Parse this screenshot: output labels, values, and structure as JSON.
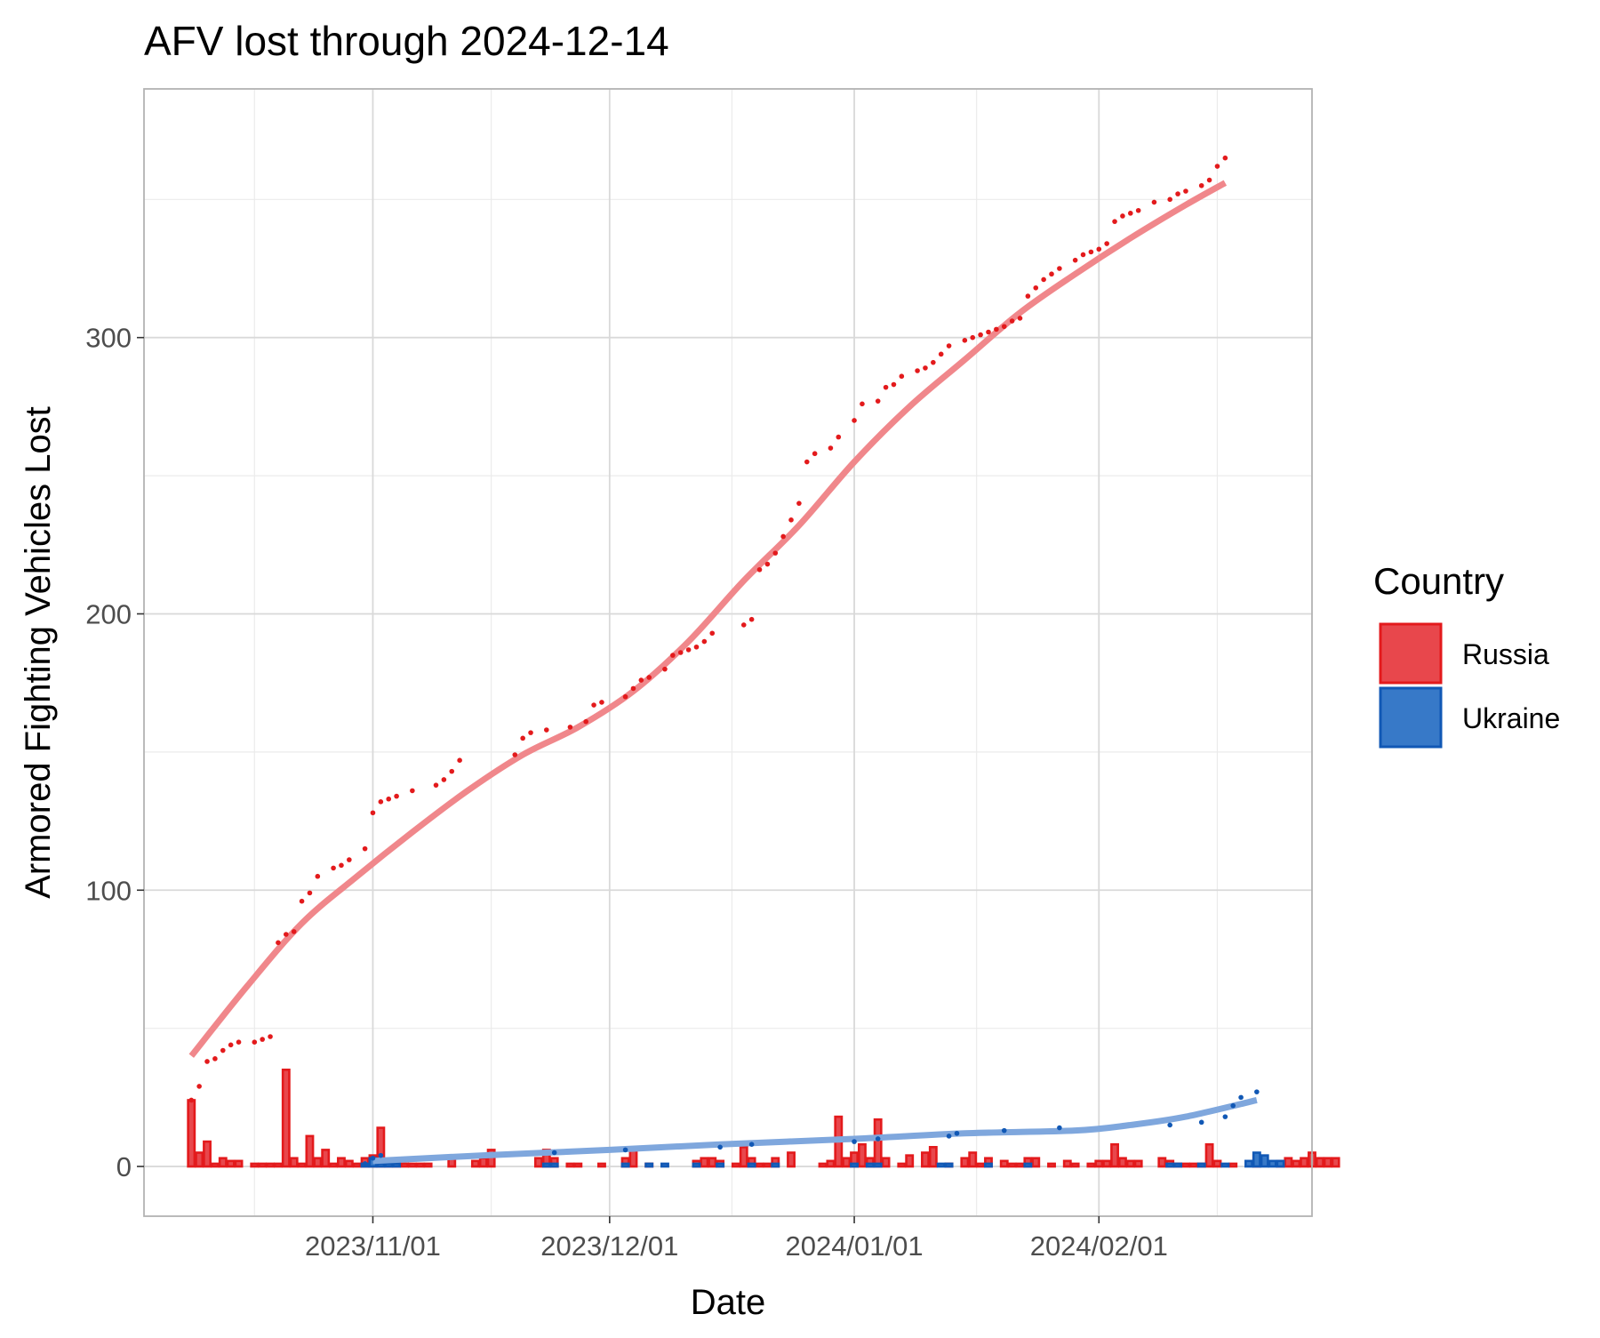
{
  "chart_data": {
    "type": "bar",
    "title": "AFV lost through 2024-12-14",
    "xlabel": "Date",
    "ylabel": "Armored Fighting Vehicles Lost",
    "x_tick_labels": [
      "2023/11/01",
      "2023/12/01",
      "2024/01/01",
      "2024/02/01"
    ],
    "x_tick_dates": [
      "2023-11-01",
      "2023-12-01",
      "2024-01-01",
      "2024-02-01"
    ],
    "y_ticks": [
      0,
      100,
      200,
      300
    ],
    "xlim": [
      "2023-10-03",
      "2024-02-28"
    ],
    "ylim": [
      -18,
      390
    ],
    "grid": true,
    "legend": {
      "title": "Country",
      "position": "right"
    },
    "colors": {
      "Russia": {
        "fill": "#e8474c",
        "stroke": "#e31a1c",
        "trend": "#f0878b"
      },
      "Ukraine": {
        "fill": "#3779c8",
        "stroke": "#1158b5",
        "trend": "#7fa7dd"
      }
    },
    "series": [
      {
        "name": "Russia",
        "daily": [
          [
            "2023-10-09",
            24
          ],
          [
            "2023-10-10",
            5
          ],
          [
            "2023-10-11",
            9
          ],
          [
            "2023-10-12",
            1
          ],
          [
            "2023-10-13",
            3
          ],
          [
            "2023-10-14",
            2
          ],
          [
            "2023-10-15",
            2
          ],
          [
            "2023-10-17",
            1
          ],
          [
            "2023-10-18",
            1
          ],
          [
            "2023-10-19",
            1
          ],
          [
            "2023-10-20",
            1
          ],
          [
            "2023-10-21",
            35
          ],
          [
            "2023-10-22",
            3
          ],
          [
            "2023-10-23",
            1
          ],
          [
            "2023-10-24",
            11
          ],
          [
            "2023-10-25",
            3
          ],
          [
            "2023-10-26",
            6
          ],
          [
            "2023-10-27",
            1
          ],
          [
            "2023-10-28",
            3
          ],
          [
            "2023-10-29",
            2
          ],
          [
            "2023-10-30",
            1
          ],
          [
            "2023-10-31",
            3
          ],
          [
            "2023-11-01",
            4
          ],
          [
            "2023-11-02",
            14
          ],
          [
            "2023-11-03",
            2
          ],
          [
            "2023-11-04",
            1
          ],
          [
            "2023-11-05",
            1
          ],
          [
            "2023-11-06",
            1
          ],
          [
            "2023-11-07",
            1
          ],
          [
            "2023-11-08",
            1
          ],
          [
            "2023-11-11",
            3
          ],
          [
            "2023-11-14",
            2
          ],
          [
            "2023-11-15",
            3
          ],
          [
            "2023-11-16",
            6
          ],
          [
            "2023-11-22",
            3
          ],
          [
            "2023-11-23",
            6
          ],
          [
            "2023-11-24",
            3
          ],
          [
            "2023-11-26",
            1
          ],
          [
            "2023-11-27",
            1
          ],
          [
            "2023-11-30",
            1
          ],
          [
            "2023-12-03",
            3
          ],
          [
            "2023-12-04",
            7
          ],
          [
            "2023-12-06",
            1
          ],
          [
            "2023-12-12",
            2
          ],
          [
            "2023-12-13",
            3
          ],
          [
            "2023-12-14",
            3
          ],
          [
            "2023-12-15",
            2
          ],
          [
            "2023-12-17",
            1
          ],
          [
            "2023-12-18",
            7
          ],
          [
            "2023-12-19",
            3
          ],
          [
            "2023-12-20",
            1
          ],
          [
            "2023-12-21",
            1
          ],
          [
            "2023-12-22",
            3
          ],
          [
            "2023-12-24",
            5
          ],
          [
            "2023-12-28",
            1
          ],
          [
            "2023-12-29",
            2
          ],
          [
            "2023-12-30",
            18
          ],
          [
            "2023-12-31",
            3
          ],
          [
            "2024-01-01",
            5
          ],
          [
            "2024-01-02",
            8
          ],
          [
            "2024-01-03",
            3
          ],
          [
            "2024-01-04",
            17
          ],
          [
            "2024-01-05",
            3
          ],
          [
            "2024-01-07",
            1
          ],
          [
            "2024-01-08",
            4
          ],
          [
            "2024-01-10",
            5
          ],
          [
            "2024-01-11",
            7
          ],
          [
            "2024-01-13",
            1
          ],
          [
            "2024-01-15",
            3
          ],
          [
            "2024-01-16",
            5
          ],
          [
            "2024-01-17",
            1
          ],
          [
            "2024-01-18",
            3
          ],
          [
            "2024-01-20",
            2
          ],
          [
            "2024-01-21",
            1
          ],
          [
            "2024-01-22",
            1
          ],
          [
            "2024-01-23",
            3
          ],
          [
            "2024-01-24",
            3
          ],
          [
            "2024-01-26",
            1
          ],
          [
            "2024-01-28",
            2
          ],
          [
            "2024-01-29",
            1
          ],
          [
            "2024-01-31",
            1
          ],
          [
            "2024-02-01",
            2
          ],
          [
            "2024-02-02",
            2
          ],
          [
            "2024-02-03",
            8
          ],
          [
            "2024-02-04",
            3
          ],
          [
            "2024-02-05",
            2
          ],
          [
            "2024-02-06",
            2
          ],
          [
            "2024-02-09",
            3
          ],
          [
            "2024-02-10",
            2
          ],
          [
            "2024-02-11",
            1
          ],
          [
            "2024-02-12",
            1
          ],
          [
            "2024-02-13",
            1
          ],
          [
            "2024-02-14",
            1
          ],
          [
            "2024-02-15",
            8
          ],
          [
            "2024-02-16",
            2
          ],
          [
            "2024-02-18",
            1
          ],
          [
            "2024-02-21",
            4
          ],
          [
            "2024-02-24",
            2
          ],
          [
            "2024-02-25",
            3
          ],
          [
            "2024-02-26",
            2
          ],
          [
            "2024-02-27",
            3
          ],
          [
            "2024-02-28",
            5
          ],
          [
            "2024-02-29",
            3
          ],
          [
            "2024-03-01",
            3
          ],
          [
            "2024-03-02",
            3
          ]
        ],
        "cumulative": [
          [
            "2023-10-09",
            24
          ],
          [
            "2023-10-10",
            29
          ],
          [
            "2023-10-11",
            38
          ],
          [
            "2023-10-12",
            39
          ],
          [
            "2023-10-13",
            42
          ],
          [
            "2023-10-14",
            44
          ],
          [
            "2023-10-15",
            45
          ],
          [
            "2023-10-17",
            45
          ],
          [
            "2023-10-18",
            46
          ],
          [
            "2023-10-19",
            47
          ],
          [
            "2023-10-20",
            81
          ],
          [
            "2023-10-21",
            84
          ],
          [
            "2023-10-22",
            85
          ],
          [
            "2023-10-23",
            96
          ],
          [
            "2023-10-24",
            99
          ],
          [
            "2023-10-25",
            105
          ],
          [
            "2023-10-27",
            108
          ],
          [
            "2023-10-28",
            109
          ],
          [
            "2023-10-29",
            111
          ],
          [
            "2023-10-31",
            115
          ],
          [
            "2023-11-01",
            128
          ],
          [
            "2023-11-02",
            132
          ],
          [
            "2023-11-03",
            133
          ],
          [
            "2023-11-04",
            134
          ],
          [
            "2023-11-06",
            136
          ],
          [
            "2023-11-09",
            138
          ],
          [
            "2023-11-10",
            140
          ],
          [
            "2023-11-11",
            143
          ],
          [
            "2023-11-12",
            147
          ],
          [
            "2023-11-19",
            149
          ],
          [
            "2023-11-20",
            155
          ],
          [
            "2023-11-21",
            157
          ],
          [
            "2023-11-23",
            158
          ],
          [
            "2023-11-26",
            159
          ],
          [
            "2023-11-28",
            161
          ],
          [
            "2023-11-29",
            167
          ],
          [
            "2023-11-30",
            168
          ],
          [
            "2023-12-03",
            170
          ],
          [
            "2023-12-04",
            173
          ],
          [
            "2023-12-05",
            176
          ],
          [
            "2023-12-06",
            177
          ],
          [
            "2023-12-08",
            180
          ],
          [
            "2023-12-09",
            185
          ],
          [
            "2023-12-10",
            186
          ],
          [
            "2023-12-11",
            187
          ],
          [
            "2023-12-12",
            188
          ],
          [
            "2023-12-13",
            190
          ],
          [
            "2023-12-14",
            193
          ],
          [
            "2023-12-18",
            196
          ],
          [
            "2023-12-19",
            198
          ],
          [
            "2023-12-20",
            216
          ],
          [
            "2023-12-21",
            218
          ],
          [
            "2023-12-22",
            222
          ],
          [
            "2023-12-23",
            228
          ],
          [
            "2023-12-24",
            234
          ],
          [
            "2023-12-25",
            240
          ],
          [
            "2023-12-26",
            255
          ],
          [
            "2023-12-27",
            258
          ],
          [
            "2023-12-29",
            260
          ],
          [
            "2023-12-30",
            264
          ],
          [
            "2024-01-01",
            270
          ],
          [
            "2024-01-02",
            276
          ],
          [
            "2024-01-04",
            277
          ],
          [
            "2024-01-05",
            282
          ],
          [
            "2024-01-06",
            283
          ],
          [
            "2024-01-07",
            286
          ],
          [
            "2024-01-09",
            288
          ],
          [
            "2024-01-10",
            289
          ],
          [
            "2024-01-11",
            291
          ],
          [
            "2024-01-12",
            294
          ],
          [
            "2024-01-13",
            297
          ],
          [
            "2024-01-15",
            299
          ],
          [
            "2024-01-16",
            300
          ],
          [
            "2024-01-17",
            301
          ],
          [
            "2024-01-18",
            302
          ],
          [
            "2024-01-19",
            303
          ],
          [
            "2024-01-20",
            304
          ],
          [
            "2024-01-21",
            306
          ],
          [
            "2024-01-22",
            307
          ],
          [
            "2024-01-23",
            315
          ],
          [
            "2024-01-24",
            318
          ],
          [
            "2024-01-25",
            321
          ],
          [
            "2024-01-26",
            323
          ],
          [
            "2024-01-27",
            325
          ],
          [
            "2024-01-29",
            328
          ],
          [
            "2024-01-30",
            330
          ],
          [
            "2024-01-31",
            331
          ],
          [
            "2024-02-01",
            332
          ],
          [
            "2024-02-02",
            334
          ],
          [
            "2024-02-03",
            342
          ],
          [
            "2024-02-04",
            344
          ],
          [
            "2024-02-05",
            345
          ],
          [
            "2024-02-06",
            346
          ],
          [
            "2024-02-08",
            349
          ],
          [
            "2024-02-10",
            350
          ],
          [
            "2024-02-11",
            352
          ],
          [
            "2024-02-12",
            353
          ],
          [
            "2024-02-14",
            355
          ],
          [
            "2024-02-15",
            357
          ],
          [
            "2024-02-16",
            362
          ],
          [
            "2024-02-17",
            365
          ]
        ],
        "trend": [
          [
            "2023-10-09",
            40
          ],
          [
            "2023-10-16",
            65
          ],
          [
            "2023-10-23",
            88
          ],
          [
            "2023-10-30",
            105
          ],
          [
            "2023-11-06",
            121
          ],
          [
            "2023-11-13",
            136
          ],
          [
            "2023-11-20",
            149
          ],
          [
            "2023-11-27",
            159
          ],
          [
            "2023-12-04",
            172
          ],
          [
            "2023-12-11",
            190
          ],
          [
            "2023-12-18",
            212
          ],
          [
            "2023-12-25",
            232
          ],
          [
            "2024-01-01",
            255
          ],
          [
            "2024-01-08",
            275
          ],
          [
            "2024-01-15",
            292
          ],
          [
            "2024-01-22",
            309
          ],
          [
            "2024-01-29",
            323
          ],
          [
            "2024-02-05",
            336
          ],
          [
            "2024-02-12",
            348
          ],
          [
            "2024-02-17",
            356
          ]
        ]
      },
      {
        "name": "Ukraine",
        "daily": [
          [
            "2023-10-31",
            1
          ],
          [
            "2023-11-01",
            3
          ],
          [
            "2023-11-02",
            1
          ],
          [
            "2023-11-03",
            1
          ],
          [
            "2023-11-04",
            1
          ],
          [
            "2023-11-23",
            1
          ],
          [
            "2023-11-24",
            1
          ],
          [
            "2023-12-03",
            1
          ],
          [
            "2023-12-06",
            1
          ],
          [
            "2023-12-08",
            1
          ],
          [
            "2023-12-12",
            1
          ],
          [
            "2023-12-15",
            1
          ],
          [
            "2023-12-19",
            1
          ],
          [
            "2023-12-22",
            1
          ],
          [
            "2024-01-01",
            1
          ],
          [
            "2024-01-03",
            1
          ],
          [
            "2024-01-04",
            1
          ],
          [
            "2024-01-12",
            1
          ],
          [
            "2024-01-13",
            1
          ],
          [
            "2024-01-18",
            1
          ],
          [
            "2024-01-23",
            1
          ],
          [
            "2024-02-10",
            1
          ],
          [
            "2024-02-11",
            1
          ],
          [
            "2024-02-14",
            1
          ],
          [
            "2024-02-17",
            1
          ],
          [
            "2024-02-20",
            2
          ],
          [
            "2024-02-21",
            5
          ],
          [
            "2024-02-22",
            4
          ],
          [
            "2024-02-23",
            2
          ],
          [
            "2024-02-24",
            2
          ]
        ],
        "cumulative": [
          [
            "2023-10-31",
            1
          ],
          [
            "2023-11-01",
            3
          ],
          [
            "2023-11-02",
            4
          ],
          [
            "2023-11-24",
            5
          ],
          [
            "2023-12-03",
            6
          ],
          [
            "2023-12-15",
            7
          ],
          [
            "2023-12-19",
            8
          ],
          [
            "2024-01-01",
            9
          ],
          [
            "2024-01-04",
            10
          ],
          [
            "2024-01-13",
            11
          ],
          [
            "2024-01-14",
            12
          ],
          [
            "2024-01-20",
            13
          ],
          [
            "2024-01-27",
            14
          ],
          [
            "2024-02-10",
            15
          ],
          [
            "2024-02-14",
            16
          ],
          [
            "2024-02-17",
            18
          ],
          [
            "2024-02-18",
            22
          ],
          [
            "2024-02-19",
            25
          ],
          [
            "2024-02-21",
            27
          ]
        ],
        "trend": [
          [
            "2023-11-01",
            2
          ],
          [
            "2023-11-15",
            4
          ],
          [
            "2023-12-01",
            6
          ],
          [
            "2023-12-15",
            8
          ],
          [
            "2024-01-01",
            10
          ],
          [
            "2024-01-15",
            12
          ],
          [
            "2024-01-29",
            13
          ],
          [
            "2024-02-05",
            15
          ],
          [
            "2024-02-12",
            18
          ],
          [
            "2024-02-21",
            24
          ]
        ]
      }
    ]
  }
}
